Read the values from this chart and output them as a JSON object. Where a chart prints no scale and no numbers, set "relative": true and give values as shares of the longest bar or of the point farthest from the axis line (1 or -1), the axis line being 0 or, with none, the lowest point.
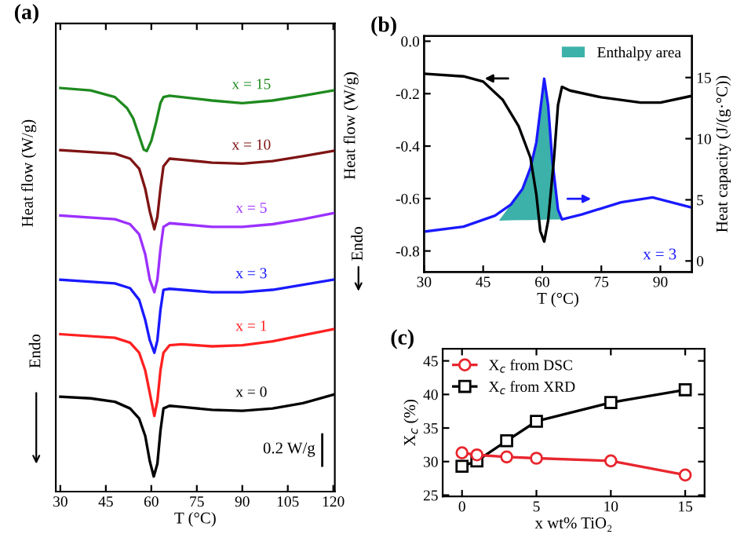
{
  "chart_data": [
    {
      "type": "line",
      "title": "(a)",
      "xlabel": "T (°C)",
      "ylabel": "Heat flow (W/g)",
      "relative": true,
      "legend": false,
      "xlim": [
        28.5,
        120.5
      ],
      "xticks": [
        30,
        45,
        60,
        75,
        90,
        105,
        120
      ],
      "annotations": [
        "Endo",
        "0.2 W/g"
      ],
      "series": [
        {
          "name": "x = 15",
          "color": "#1f8a1f",
          "x": [
            30,
            40,
            48,
            52,
            54,
            56,
            57.5,
            58.5,
            60,
            61.5,
            63,
            64,
            66,
            70,
            80,
            90,
            100,
            110,
            120
          ],
          "values": [
            1.0,
            0.994,
            0.9775,
            0.95,
            0.925,
            0.881,
            0.8475,
            0.844,
            0.869,
            0.9125,
            0.9625,
            0.9775,
            0.981,
            0.9775,
            0.969,
            0.9625,
            0.969,
            0.981,
            0.994
          ]
        },
        {
          "name": "x = 10",
          "color": "#7f1414",
          "x": [
            30,
            48,
            53,
            56,
            58,
            59.5,
            61,
            62,
            63,
            64,
            66,
            70,
            80,
            90,
            100,
            110,
            120
          ],
          "values": [
            0.846,
            0.8375,
            0.825,
            0.8,
            0.75,
            0.694,
            0.65,
            0.681,
            0.75,
            0.806,
            0.825,
            0.8225,
            0.815,
            0.8125,
            0.819,
            0.831,
            0.844
          ]
        },
        {
          "name": "x = 5",
          "color": "#9b30ff",
          "x": [
            30,
            48,
            53,
            56,
            58,
            59.5,
            61,
            62,
            63,
            64,
            66,
            70,
            80,
            90,
            100,
            110,
            120
          ],
          "values": [
            0.684,
            0.675,
            0.6625,
            0.6375,
            0.5875,
            0.525,
            0.494,
            0.525,
            0.6,
            0.656,
            0.665,
            0.6625,
            0.656,
            0.656,
            0.6625,
            0.675,
            0.69
          ]
        },
        {
          "name": "x = 3",
          "color": "#1a1aff",
          "x": [
            30,
            48,
            53,
            56,
            58,
            59.5,
            61,
            62,
            63,
            64,
            66,
            70,
            80,
            90,
            100,
            110,
            120
          ],
          "values": [
            0.525,
            0.516,
            0.504,
            0.475,
            0.425,
            0.375,
            0.344,
            0.375,
            0.45,
            0.5,
            0.5025,
            0.5,
            0.494,
            0.494,
            0.5,
            0.5125,
            0.525
          ]
        },
        {
          "name": "x = 1",
          "color": "#ff2020",
          "x": [
            30,
            48,
            53,
            56,
            58,
            59.5,
            61,
            62,
            63,
            64,
            66,
            70,
            80,
            90,
            100,
            110,
            120
          ],
          "values": [
            0.39,
            0.381,
            0.369,
            0.344,
            0.3,
            0.244,
            0.1875,
            0.225,
            0.3,
            0.344,
            0.3625,
            0.365,
            0.36,
            0.3625,
            0.3725,
            0.3875,
            0.4025
          ]
        },
        {
          "name": "x = 0",
          "color": "#000000",
          "x": [
            30,
            40,
            48,
            53,
            56,
            58,
            59.5,
            60.8,
            62,
            63,
            64,
            66,
            70,
            80,
            90,
            100,
            110,
            120
          ],
          "values": [
            0.235,
            0.231,
            0.2225,
            0.206,
            0.181,
            0.1375,
            0.075,
            0.0375,
            0.069,
            0.15,
            0.206,
            0.2125,
            0.21,
            0.2025,
            0.2,
            0.206,
            0.219,
            0.24
          ]
        }
      ]
    },
    {
      "type": "line",
      "title": "(b)",
      "xlabel": "T (°C)",
      "ylabel": "Heat flow (W/g)",
      "y2label": "Heat capacity (J/(g·°C))",
      "legend": "top right",
      "xlim": [
        30,
        98
      ],
      "xticks": [
        30,
        45,
        60,
        75,
        90
      ],
      "ylim": [
        -0.88,
        0.02
      ],
      "yticks": [
        {
          "value": 0,
          "label": "0.0"
        },
        -0.2,
        -0.4,
        -0.6,
        -0.8
      ],
      "y2lim": [
        -0.9,
        18.4
      ],
      "y2ticks": [
        0,
        5,
        10,
        15
      ],
      "annotations": [
        "Endo",
        "x = 3"
      ],
      "series": [
        {
          "color": "#000000",
          "x": [
            30,
            40,
            45,
            50,
            54,
            57,
            58.5,
            59.5,
            60.5,
            61.5,
            63,
            64,
            65,
            67,
            75,
            85,
            90,
            97.5
          ],
          "values": [
            -0.124,
            -0.134,
            -0.154,
            -0.224,
            -0.324,
            -0.444,
            -0.584,
            -0.724,
            -0.764,
            -0.684,
            -0.444,
            -0.244,
            -0.174,
            -0.188,
            -0.214,
            -0.234,
            -0.234,
            -0.21
          ]
        },
        {
          "type": "area",
          "name": "Enthalpy area",
          "color": "#1aa39a",
          "axis": "y2",
          "x": [
            49,
            52,
            55,
            57,
            58.5,
            59.5,
            60.5,
            61.5,
            62.5,
            64,
            65
          ],
          "values": [
            3.3,
            4.6,
            5.9,
            7.6,
            9.7,
            12.3,
            14.9,
            12.7,
            8.4,
            4.2,
            3.4
          ]
        },
        {
          "color": "#1a1aff",
          "axis": "y2",
          "x": [
            30,
            40,
            48,
            52,
            55,
            57,
            58.5,
            59.5,
            60.5,
            61.5,
            62.5,
            64,
            65,
            70,
            80,
            88,
            97.5
          ],
          "values": [
            2.4,
            2.8,
            3.7,
            4.6,
            5.9,
            7.6,
            9.7,
            12.3,
            14.9,
            12.7,
            8.4,
            4.2,
            3.4,
            3.8,
            4.8,
            5.2,
            4.4
          ]
        }
      ]
    },
    {
      "type": "line",
      "title": "(c)",
      "xlabel": "x wt% TiO₂",
      "ylabel": "X$_{c}$ (%)",
      "legend": "top left",
      "xlim": [
        -1.3,
        16.3
      ],
      "xticks": [
        0,
        5,
        10,
        15
      ],
      "ylim": [
        24.8,
        46.8
      ],
      "yticks": [
        25,
        30,
        35,
        40,
        45
      ],
      "series": [
        {
          "name": "X$_{c}$ from DSC",
          "color": "#e8262e",
          "marker": "circle",
          "x": [
            0,
            1,
            3,
            5,
            10,
            15
          ],
          "values": [
            31.3,
            31.0,
            30.7,
            30.5,
            30.1,
            28.0
          ]
        },
        {
          "name": "X$_{c}$ from XRD",
          "color": "#000000",
          "marker": "square",
          "x": [
            0,
            1,
            3,
            5,
            10,
            15
          ],
          "values": [
            29.3,
            30.1,
            33.1,
            36.0,
            38.8,
            40.7
          ]
        }
      ]
    }
  ]
}
